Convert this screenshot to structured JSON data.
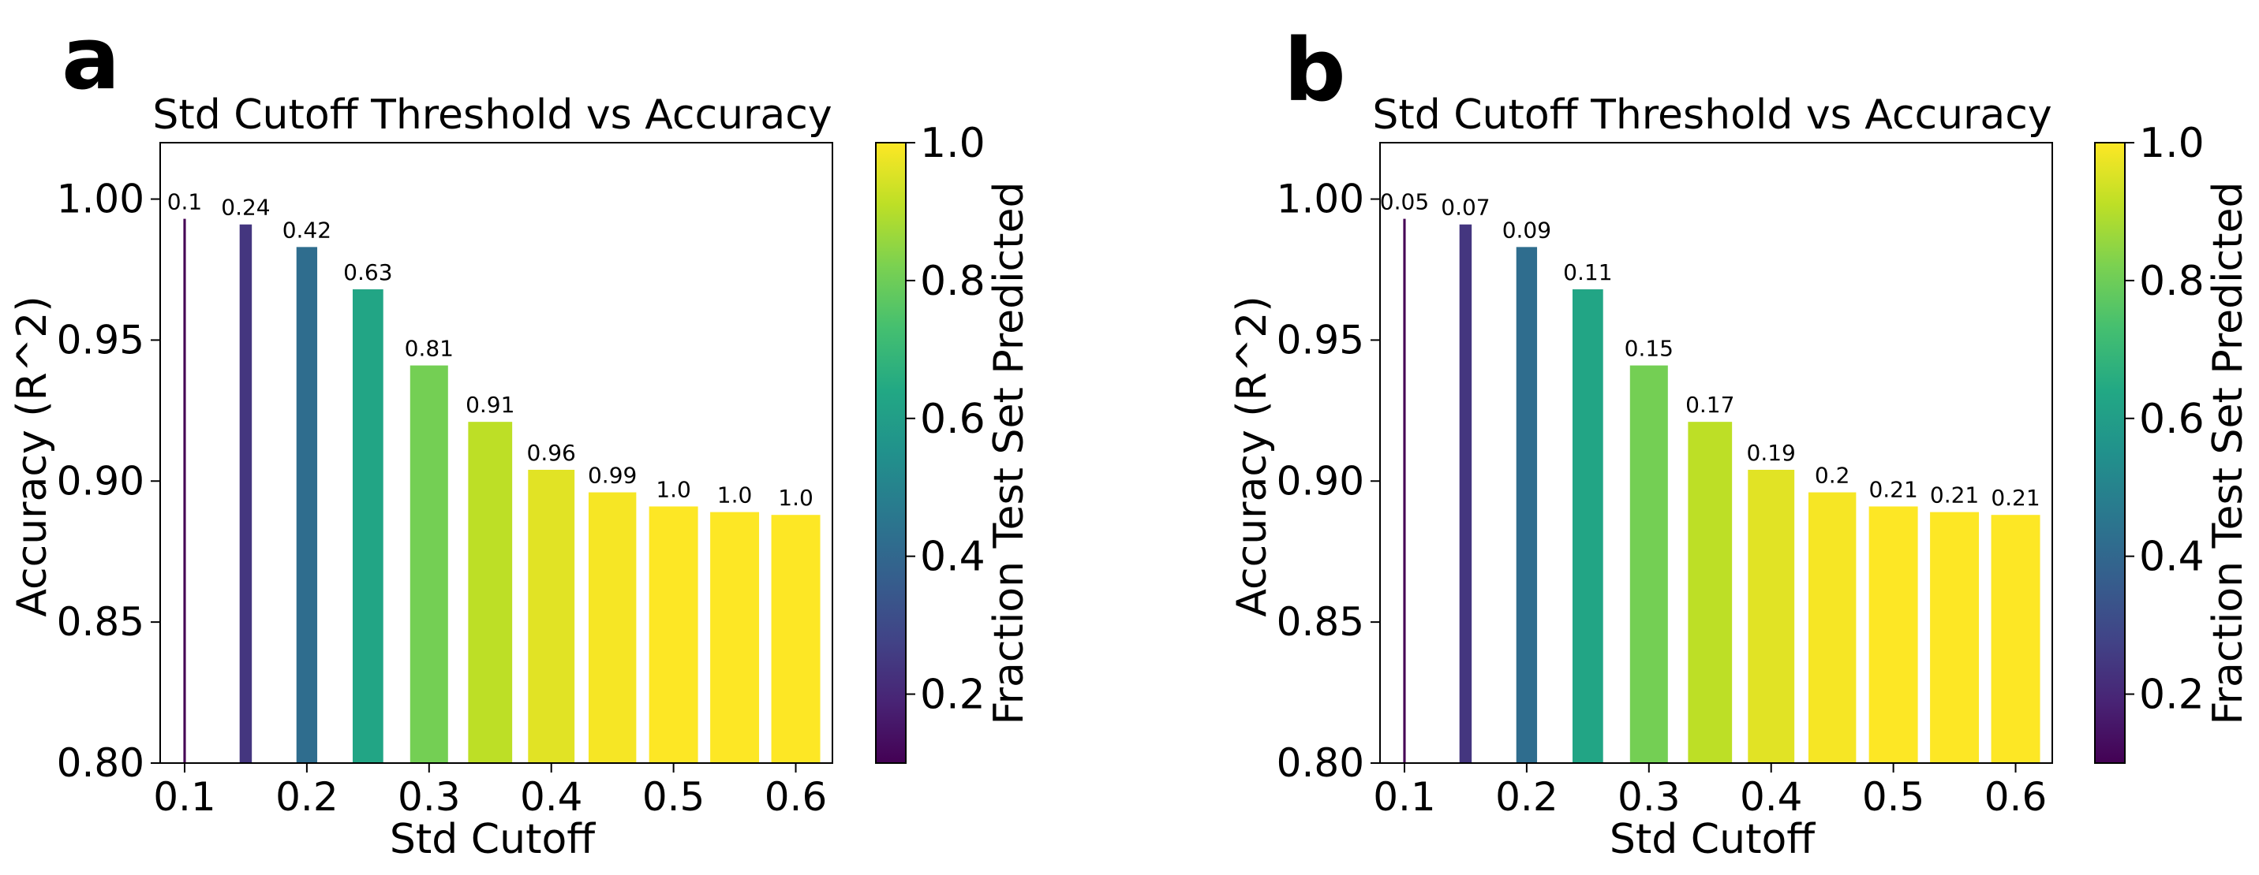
{
  "panels": [
    {
      "letter": "a",
      "colorbar_label": "Fraction Test Set Predicted",
      "chart_data": {
        "type": "bar",
        "title": "Std Cutoff Threshold vs Accuracy",
        "xlabel": "Std Cutoff",
        "ylabel": "Accuracy (R^2)",
        "x": [
          0.1,
          0.15,
          0.2,
          0.25,
          0.3,
          0.35,
          0.4,
          0.45,
          0.5,
          0.55,
          0.6
        ],
        "values": [
          0.993,
          0.991,
          0.983,
          0.968,
          0.941,
          0.921,
          0.904,
          0.896,
          0.891,
          0.889,
          0.888
        ],
        "bar_labels": [
          "0.1",
          "0.24",
          "0.42",
          "0.63",
          "0.81",
          "0.91",
          "0.96",
          "0.99",
          "1.0",
          "1.0",
          "1.0"
        ],
        "color_values": [
          0.1,
          0.24,
          0.42,
          0.63,
          0.81,
          0.91,
          0.96,
          0.99,
          1.0,
          1.0,
          1.0
        ],
        "bar_widths": [
          0.002,
          0.01,
          0.017,
          0.025,
          0.031,
          0.036,
          0.038,
          0.039,
          0.04,
          0.04,
          0.04
        ],
        "xlim": [
          0.08,
          0.63
        ],
        "ylim": [
          0.8,
          1.02
        ],
        "xticks": [
          "0.1",
          "0.2",
          "0.3",
          "0.4",
          "0.5",
          "0.6"
        ],
        "yticks": [
          "0.80",
          "0.85",
          "0.90",
          "0.95",
          "1.00"
        ],
        "colorbar": {
          "cmap": "viridis",
          "range": [
            0.1,
            1.0
          ],
          "ticks": [
            "0.2",
            "0.4",
            "0.6",
            "0.8",
            "1.0"
          ]
        }
      }
    },
    {
      "letter": "b",
      "colorbar_label": "Fraction Test Set Predicted",
      "chart_data": {
        "type": "bar",
        "title": "Std Cutoff Threshold vs Accuracy",
        "xlabel": "Std Cutoff",
        "ylabel": "Accuracy (R^2)",
        "x": [
          0.1,
          0.15,
          0.2,
          0.25,
          0.3,
          0.35,
          0.4,
          0.45,
          0.5,
          0.55,
          0.6
        ],
        "values": [
          0.993,
          0.991,
          0.983,
          0.968,
          0.941,
          0.921,
          0.904,
          0.896,
          0.891,
          0.889,
          0.888
        ],
        "bar_labels": [
          "0.05",
          "0.07",
          "0.09",
          "0.11",
          "0.15",
          "0.17",
          "0.19",
          "0.2",
          "0.21",
          "0.21",
          "0.21"
        ],
        "color_values": [
          0.1,
          0.24,
          0.42,
          0.63,
          0.81,
          0.91,
          0.96,
          0.99,
          1.0,
          1.0,
          1.0
        ],
        "bar_widths": [
          0.002,
          0.01,
          0.017,
          0.025,
          0.031,
          0.036,
          0.038,
          0.039,
          0.04,
          0.04,
          0.04
        ],
        "xlim": [
          0.08,
          0.63
        ],
        "ylim": [
          0.8,
          1.02
        ],
        "xticks": [
          "0.1",
          "0.2",
          "0.3",
          "0.4",
          "0.5",
          "0.6"
        ],
        "yticks": [
          "0.80",
          "0.85",
          "0.90",
          "0.95",
          "1.00"
        ],
        "colorbar": {
          "cmap": "viridis",
          "range": [
            0.1,
            1.0
          ],
          "ticks": [
            "0.2",
            "0.4",
            "0.6",
            "0.8",
            "1.0"
          ]
        }
      }
    }
  ]
}
